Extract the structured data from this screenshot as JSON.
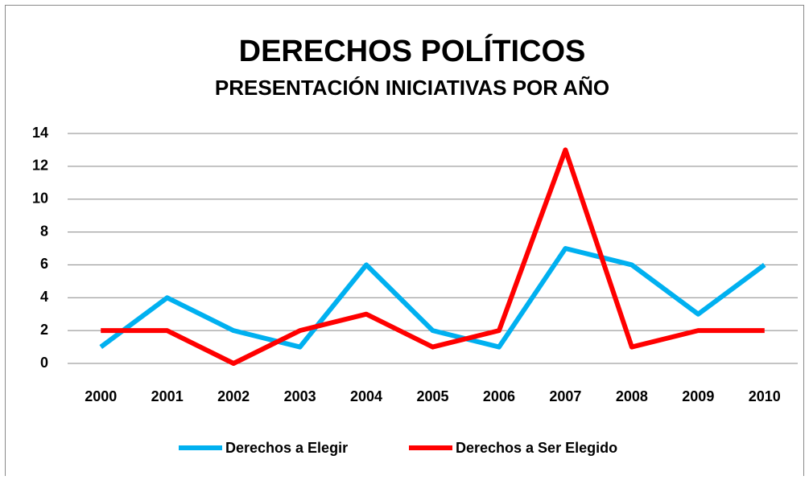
{
  "chart_data": {
    "type": "line",
    "title": "DERECHOS POLÍTICOS",
    "subtitle": "PRESENTACIÓN  INICIATIVAS POR AÑO",
    "categories": [
      "2000",
      "2001",
      "2002",
      "2003",
      "2004",
      "2005",
      "2006",
      "2007",
      "2008",
      "2009",
      "2010"
    ],
    "series": [
      {
        "name": "Derechos a Elegir",
        "color": "#00b0f0",
        "values": [
          1,
          4,
          2,
          1,
          6,
          2,
          1,
          7,
          6,
          3,
          6
        ]
      },
      {
        "name": "Derechos a Ser Elegido",
        "color": "#ff0000",
        "values": [
          2,
          2,
          0,
          2,
          3,
          1,
          2,
          13,
          1,
          2,
          2
        ]
      }
    ],
    "ylim": [
      0,
      14
    ],
    "yticks": [
      0,
      2,
      4,
      6,
      8,
      10,
      12,
      14
    ],
    "grid": true,
    "legend": "bottom"
  }
}
